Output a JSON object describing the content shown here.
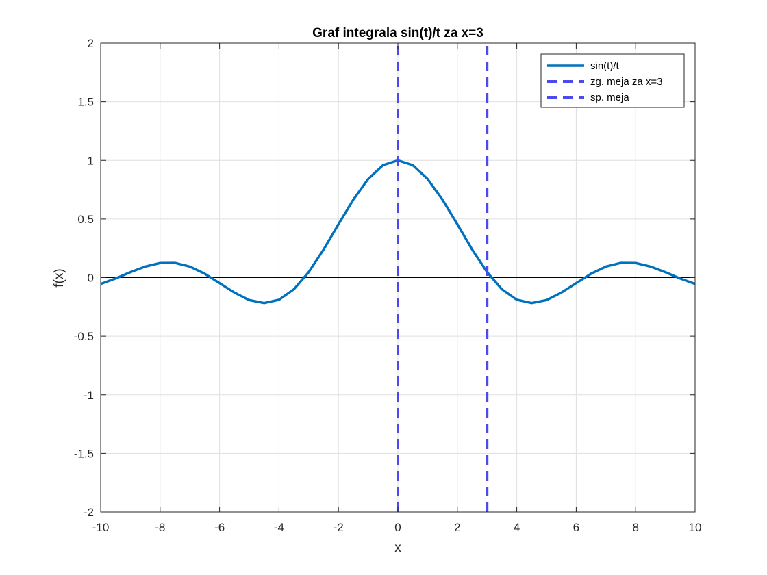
{
  "chart_data": {
    "type": "line",
    "title": "Graf integrala sin(t)/t za x=3",
    "xlabel": "x",
    "ylabel": "f(x)",
    "xlim": [
      -10,
      10
    ],
    "ylim": [
      -2,
      2
    ],
    "xticks": [
      -10,
      -8,
      -6,
      -4,
      -2,
      0,
      2,
      4,
      6,
      8,
      10
    ],
    "xtick_labels": [
      "-10",
      "-8",
      "-6",
      "-4",
      "-2",
      "0",
      "2",
      "4",
      "6",
      "8",
      "10"
    ],
    "yticks": [
      -2,
      -1.5,
      -1,
      -0.5,
      0,
      0.5,
      1,
      1.5,
      2
    ],
    "ytick_labels": [
      "-2",
      "-1.5",
      "-1",
      "-0.5",
      "0",
      "0.5",
      "1",
      "1.5",
      "2"
    ],
    "grid": true,
    "zero_line": true,
    "legend_position": "top-right",
    "series": [
      {
        "name": "sin(t)/t",
        "style": "solid",
        "color": "#0072bd",
        "x": [
          -10,
          -9.5,
          -9,
          -8.5,
          -8,
          -7.5,
          -7,
          -6.5,
          -6,
          -5.5,
          -5,
          -4.5,
          -4,
          -3.5,
          -3,
          -2.5,
          -2,
          -1.5,
          -1,
          -0.5,
          0,
          0.5,
          1,
          1.5,
          2,
          2.5,
          3,
          3.5,
          4,
          4.5,
          5,
          5.5,
          6,
          6.5,
          7,
          7.5,
          8,
          8.5,
          9,
          9.5,
          10
        ],
        "y": [
          -0.054,
          -0.008,
          0.046,
          0.094,
          0.124,
          0.125,
          0.094,
          0.033,
          -0.047,
          -0.128,
          -0.192,
          -0.217,
          -0.189,
          -0.1,
          0.047,
          0.239,
          0.455,
          0.665,
          0.841,
          0.959,
          1.0,
          0.959,
          0.841,
          0.665,
          0.455,
          0.239,
          0.047,
          -0.1,
          -0.189,
          -0.217,
          -0.192,
          -0.128,
          -0.047,
          0.033,
          0.094,
          0.125,
          0.124,
          0.094,
          0.046,
          -0.008,
          -0.054
        ]
      },
      {
        "name": "zg. meja za x=3",
        "style": "dashed",
        "color": "#4a4aef",
        "x": [
          3,
          3
        ],
        "y": [
          -2,
          2
        ]
      },
      {
        "name": "sp. meja",
        "style": "dashed",
        "color": "#4a4aef",
        "x": [
          0,
          0
        ],
        "y": [
          -2,
          2
        ]
      }
    ]
  }
}
